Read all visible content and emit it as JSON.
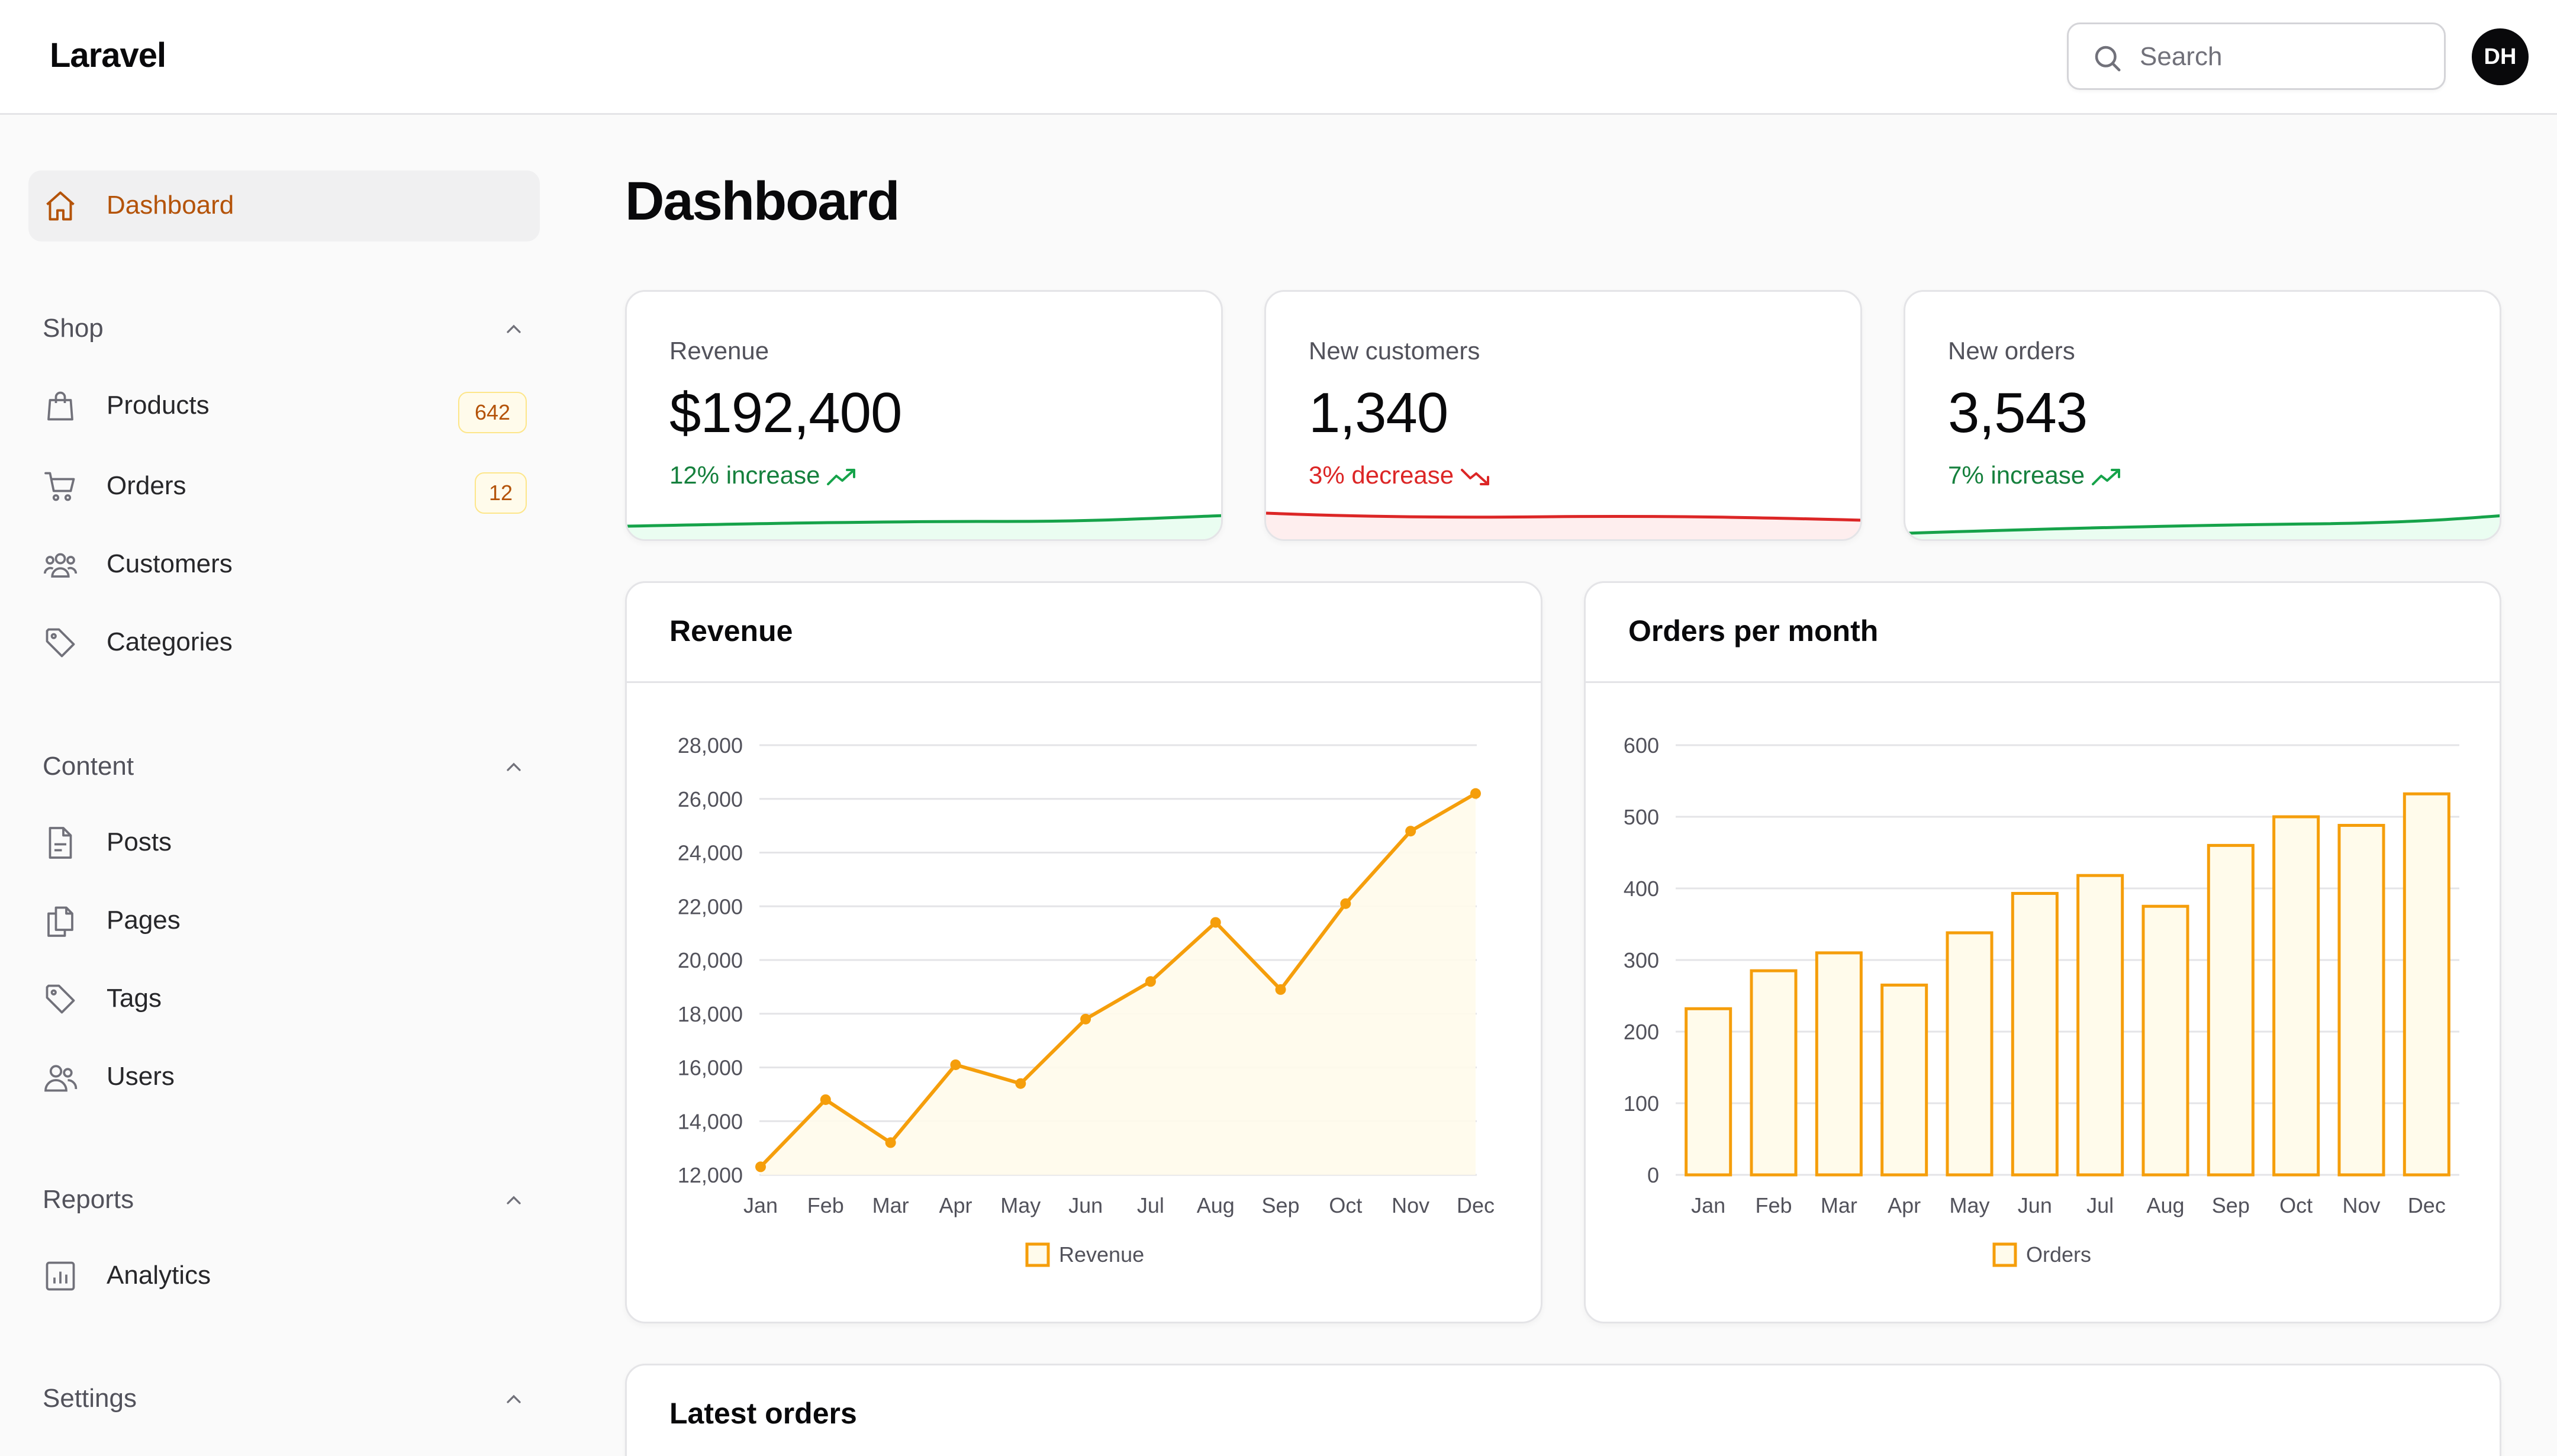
{
  "app": {
    "brand": "Laravel"
  },
  "header": {
    "search_placeholder": "Search",
    "avatar_initials": "DH"
  },
  "sidebar": {
    "dashboard": "Dashboard",
    "groups": {
      "shop": "Shop",
      "content": "Content",
      "reports": "Reports",
      "settings": "Settings"
    },
    "shop_items": [
      {
        "label": "Products",
        "badge": "642",
        "icon": "shopping-bag-icon"
      },
      {
        "label": "Orders",
        "badge": "12",
        "icon": "shopping-cart-icon"
      },
      {
        "label": "Customers",
        "icon": "users-group-icon"
      },
      {
        "label": "Categories",
        "icon": "tag-icon"
      }
    ],
    "content_items": [
      {
        "label": "Posts",
        "icon": "document-icon"
      },
      {
        "label": "Pages",
        "icon": "documents-icon"
      },
      {
        "label": "Tags",
        "icon": "tag-icon"
      },
      {
        "label": "Users",
        "icon": "users-icon"
      }
    ],
    "reports_items": [
      {
        "label": "Analytics",
        "icon": "chart-bar-icon"
      }
    ]
  },
  "main": {
    "title": "Dashboard",
    "stats": [
      {
        "label": "Revenue",
        "value": "$192,400",
        "trend": "12% increase",
        "direction": "up"
      },
      {
        "label": "New customers",
        "value": "1,340",
        "trend": "3% decrease",
        "direction": "down"
      },
      {
        "label": "New orders",
        "value": "3,543",
        "trend": "7% increase",
        "direction": "up"
      }
    ],
    "latest_orders_title": "Latest orders"
  },
  "colors": {
    "accent": "#f59e0b",
    "accent_fill": "#fffbeb",
    "active_text": "#b45309",
    "trend_up": "#16a34a",
    "trend_down": "#dc2626"
  },
  "chart_data": [
    {
      "type": "line",
      "title": "Revenue",
      "categories": [
        "Jan",
        "Feb",
        "Mar",
        "Apr",
        "May",
        "Jun",
        "Jul",
        "Aug",
        "Sep",
        "Oct",
        "Nov",
        "Dec"
      ],
      "series": [
        {
          "name": "Revenue",
          "values": [
            12300,
            14800,
            13200,
            16100,
            15400,
            17800,
            19200,
            21400,
            18900,
            22100,
            24800,
            26200
          ]
        }
      ],
      "ylim": [
        12000,
        28000
      ],
      "yticks": [
        "28,000",
        "26,000",
        "24,000",
        "22,000",
        "20,000",
        "18,000",
        "16,000",
        "14,000",
        "12,000"
      ],
      "ytick_values": [
        28000,
        26000,
        24000,
        22000,
        20000,
        18000,
        16000,
        14000,
        12000
      ],
      "grid": true,
      "legend": "bottom-center",
      "area_fill": true
    },
    {
      "type": "bar",
      "title": "Orders per month",
      "categories": [
        "Jan",
        "Feb",
        "Mar",
        "Apr",
        "May",
        "Jun",
        "Jul",
        "Aug",
        "Sep",
        "Oct",
        "Nov",
        "Dec"
      ],
      "series": [
        {
          "name": "Orders",
          "values": [
            232,
            285,
            310,
            265,
            338,
            393,
            418,
            375,
            460,
            500,
            488,
            532
          ]
        }
      ],
      "ylim": [
        0,
        600
      ],
      "yticks": [
        "600",
        "500",
        "400",
        "300",
        "200",
        "100",
        "0"
      ],
      "ytick_values": [
        600,
        500,
        400,
        300,
        200,
        100,
        0
      ],
      "grid": true,
      "legend": "bottom-center"
    }
  ]
}
